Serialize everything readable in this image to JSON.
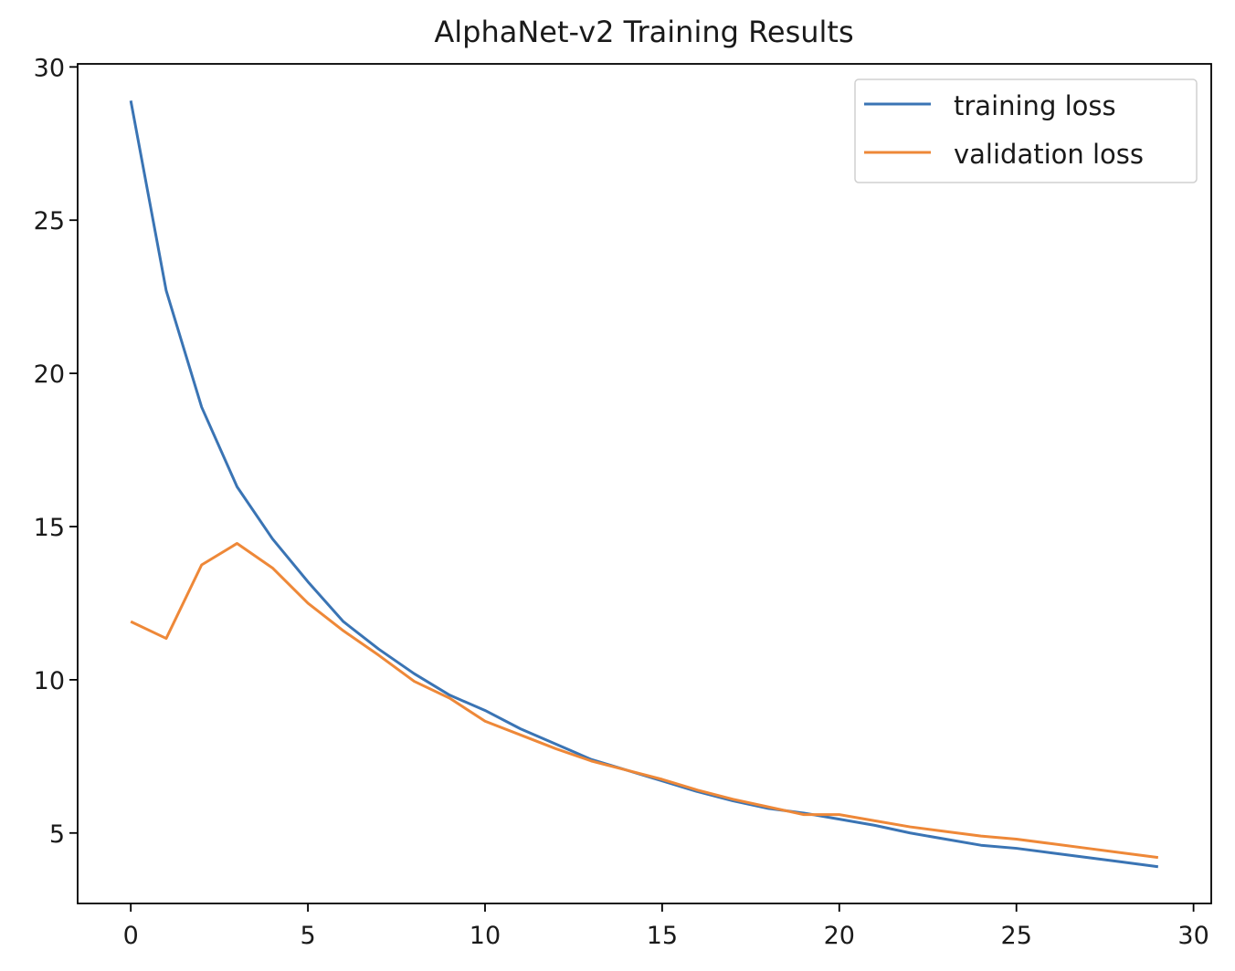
{
  "chart_data": {
    "type": "line",
    "title": "AlphaNet-v2 Training Results",
    "xlabel": "",
    "ylabel": "",
    "xlim": [
      -1.5,
      30.5
    ],
    "ylim": [
      2.7,
      30.1
    ],
    "xticks": [
      0,
      5,
      10,
      15,
      20,
      25,
      30
    ],
    "yticks": [
      5,
      10,
      15,
      20,
      25,
      30
    ],
    "grid": false,
    "legend_position": "top-right",
    "x": [
      0,
      1,
      2,
      3,
      4,
      5,
      6,
      7,
      8,
      9,
      10,
      11,
      12,
      13,
      14,
      15,
      16,
      17,
      18,
      19,
      20,
      21,
      22,
      23,
      24,
      25,
      26,
      27,
      28,
      29
    ],
    "series": [
      {
        "name": "training loss",
        "color": "#3a74b4",
        "values": [
          28.9,
          22.7,
          18.9,
          16.3,
          14.6,
          13.2,
          11.9,
          11.0,
          10.2,
          9.5,
          9.0,
          8.4,
          7.9,
          7.4,
          7.05,
          6.7,
          6.35,
          6.05,
          5.8,
          5.65,
          5.45,
          5.25,
          5.0,
          4.8,
          4.6,
          4.5,
          4.35,
          4.2,
          4.05,
          3.9
        ]
      },
      {
        "name": "validation loss",
        "color": "#ee8838",
        "values": [
          11.9,
          11.35,
          13.75,
          14.45,
          13.65,
          12.5,
          11.6,
          10.8,
          9.95,
          9.4,
          8.65,
          8.2,
          7.75,
          7.35,
          7.05,
          6.75,
          6.4,
          6.1,
          5.85,
          5.6,
          5.6,
          5.4,
          5.2,
          5.05,
          4.9,
          4.8,
          4.65,
          4.5,
          4.35,
          4.2
        ]
      }
    ]
  }
}
